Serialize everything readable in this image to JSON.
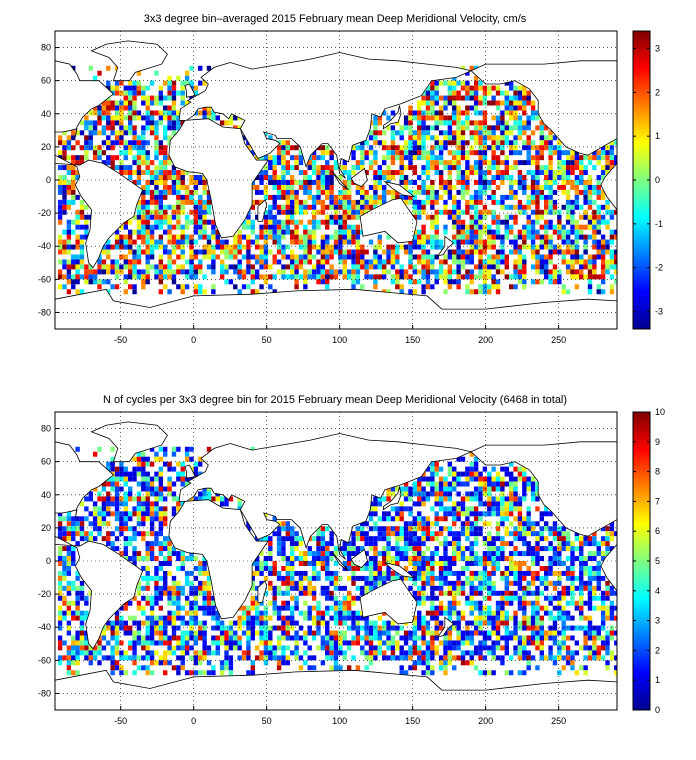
{
  "chart_data": [
    {
      "type": "heatmap",
      "title": "3x3 degree bin–averaged 2015 February mean Deep Meridional Velocity, cm/s",
      "xlabel": "",
      "ylabel": "",
      "xlim": [
        -95,
        290
      ],
      "ylim": [
        -90,
        90
      ],
      "x_ticks": [
        -50,
        0,
        50,
        100,
        150,
        200,
        250
      ],
      "y_ticks": [
        80,
        60,
        40,
        20,
        0,
        -20,
        -40,
        -60,
        -80
      ],
      "grid": true,
      "colorbar": {
        "min": -3.4,
        "max": 3.4,
        "ticks": [
          3,
          2,
          1,
          0,
          -1,
          -2,
          -3
        ],
        "colormap": "jet"
      },
      "bin_size_deg": 3
    },
    {
      "type": "heatmap",
      "title": "N of cycles per 3x3 degree bin for 2015 February mean Deep Meridional Velocity (6468 in total)",
      "xlabel": "",
      "ylabel": "",
      "xlim": [
        -95,
        290
      ],
      "ylim": [
        -90,
        90
      ],
      "x_ticks": [
        -50,
        0,
        50,
        100,
        150,
        200,
        250
      ],
      "y_ticks": [
        80,
        60,
        40,
        20,
        0,
        -20,
        -40,
        -60,
        -80
      ],
      "grid": true,
      "colorbar": {
        "min": 0,
        "max": 10,
        "ticks": [
          10,
          9,
          8,
          7,
          6,
          5,
          4,
          3,
          2,
          1,
          0
        ],
        "colormap": "jet"
      },
      "bin_size_deg": 3,
      "total_cycles": 6468
    }
  ]
}
